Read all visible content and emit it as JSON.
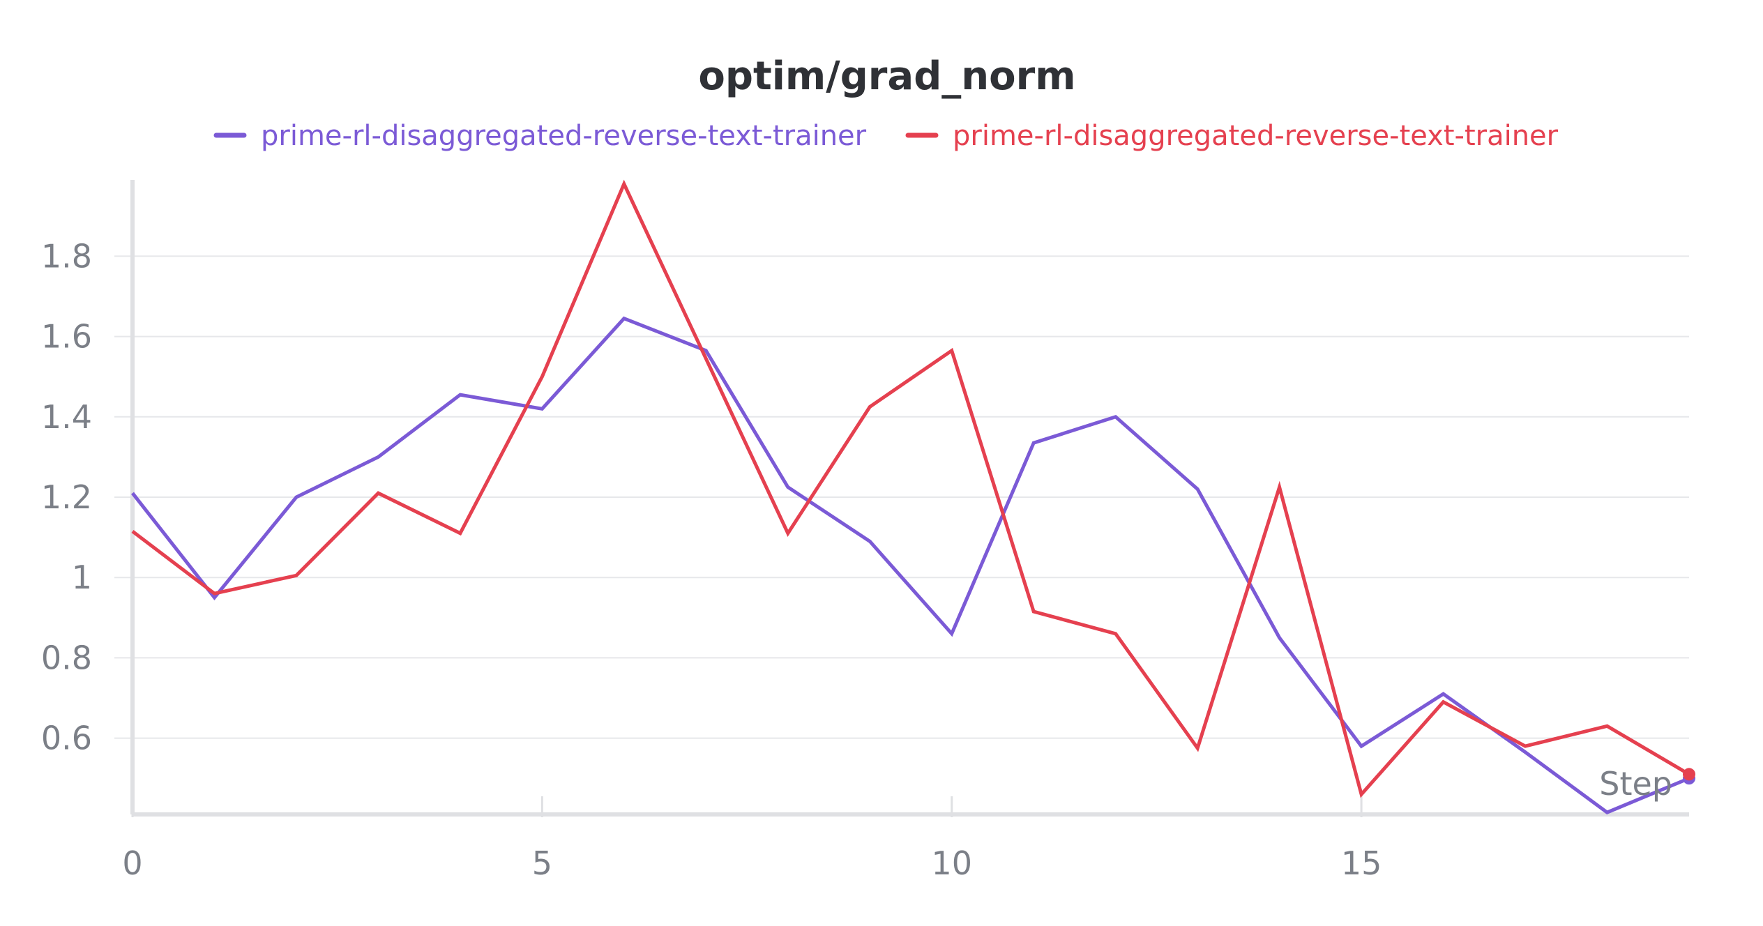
{
  "chart_data": {
    "type": "line",
    "title": "optim/grad_norm",
    "xlabel": "Step",
    "ylabel": "",
    "xlim": [
      0,
      19
    ],
    "ylim": [
      0.41,
      1.99
    ],
    "xticks": [
      0,
      5,
      10,
      15
    ],
    "xtick_labels": [
      "0",
      "5",
      "10",
      "15"
    ],
    "yticks": [
      0.6,
      0.8,
      1.0,
      1.2,
      1.4,
      1.6,
      1.8
    ],
    "ytick_labels": [
      "0.6",
      "0.8",
      "1",
      "1.2",
      "1.4",
      "1.6",
      "1.8"
    ],
    "grid": true,
    "legend_position": "top",
    "x": [
      0,
      1,
      2,
      3,
      4,
      5,
      6,
      7,
      8,
      9,
      10,
      11,
      12,
      13,
      14,
      15,
      16,
      17,
      18,
      19
    ],
    "series": [
      {
        "name": "prime-rl-disaggregated-reverse-text-trainer",
        "color": "#7b5ad6",
        "values": [
          1.21,
          0.95,
          1.2,
          1.3,
          1.455,
          1.42,
          1.645,
          1.565,
          1.225,
          1.09,
          0.86,
          1.335,
          1.4,
          1.22,
          0.85,
          0.58,
          0.71,
          0.565,
          0.415,
          0.5
        ]
      },
      {
        "name": "prime-rl-disaggregated-reverse-text-trainer",
        "color": "#e5404f",
        "values": [
          1.115,
          0.96,
          1.005,
          1.21,
          1.11,
          1.5,
          1.98,
          1.545,
          1.11,
          1.425,
          1.565,
          0.915,
          0.86,
          0.575,
          1.225,
          0.46,
          0.69,
          0.58,
          0.63,
          0.51
        ]
      }
    ]
  }
}
